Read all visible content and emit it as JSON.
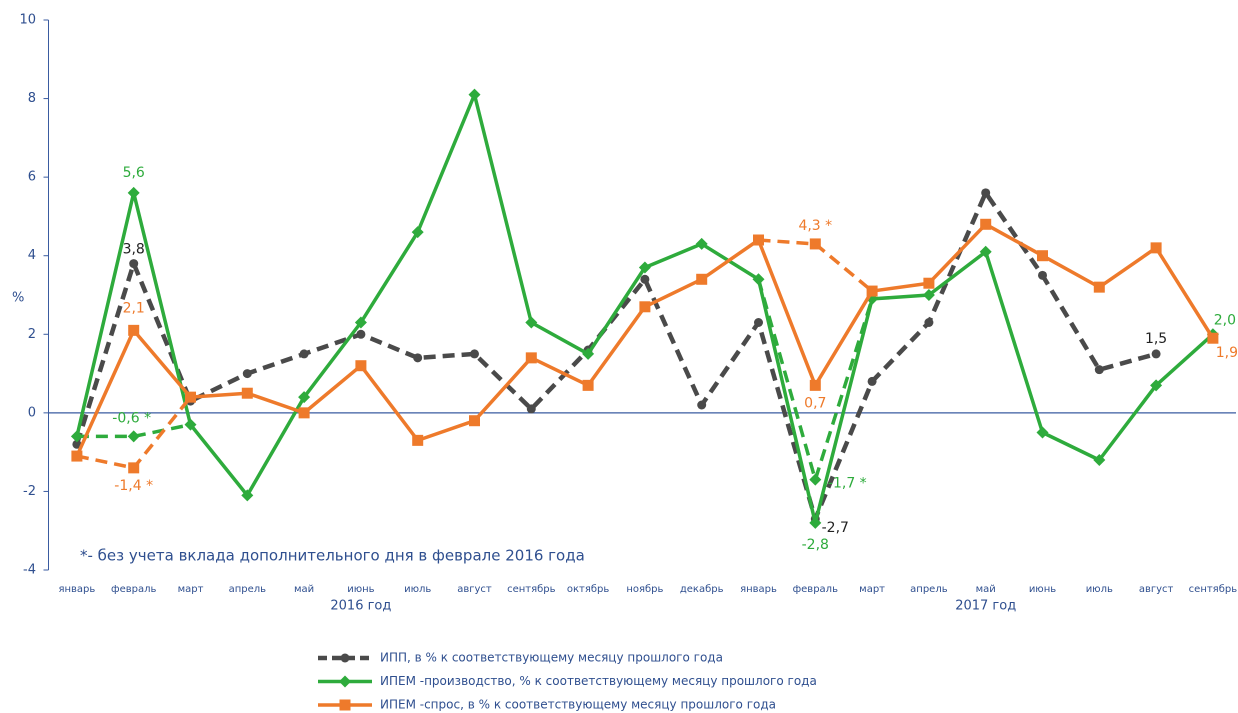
{
  "chart_data": {
    "type": "line",
    "ylabel": "%",
    "categories": [
      "январь",
      "февраль",
      "март",
      "апрель",
      "май",
      "июнь",
      "июль",
      "август",
      "сентябрь",
      "октябрь",
      "ноябрь",
      "декабрь",
      "январь",
      "февраль",
      "март",
      "апрель",
      "май",
      "июнь",
      "июль",
      "август",
      "сентябрь"
    ],
    "year_labels": [
      {
        "label": "2016 год",
        "at": 5.5
      },
      {
        "label": "2017 год",
        "at": 16.5
      }
    ],
    "footnote": "*- без учета вклада дополнительного дня в феврале 2016 года",
    "ylim": [
      -4,
      10
    ],
    "yticks": [
      -4,
      -2,
      0,
      2,
      4,
      6,
      8,
      10
    ],
    "series": [
      {
        "name": "ИПП, в % к соответствующему месяцу прошлого года",
        "color": "#4a4a4a",
        "marker": "circle",
        "dashed": true,
        "values": [
          -0.8,
          3.8,
          0.3,
          1.0,
          1.5,
          2.0,
          1.4,
          1.5,
          0.1,
          1.6,
          3.4,
          0.2,
          2.3,
          -2.7,
          0.8,
          2.3,
          5.6,
          3.5,
          1.1,
          1.5,
          null
        ],
        "value_labels": [
          null,
          "3,8",
          null,
          null,
          null,
          null,
          null,
          null,
          null,
          null,
          null,
          null,
          null,
          "-2,7",
          null,
          null,
          null,
          null,
          null,
          "1,5",
          null
        ]
      },
      {
        "name": "ИПЕМ -производство, % к соответствующему месяцу прошлого года",
        "color": "#2eab3c",
        "marker": "diamond",
        "dashed": false,
        "values": [
          -0.6,
          5.6,
          -0.3,
          -2.1,
          0.4,
          2.3,
          4.6,
          8.1,
          2.3,
          1.5,
          3.7,
          4.3,
          3.4,
          -2.8,
          2.9,
          3.0,
          4.1,
          -0.5,
          -1.2,
          0.7,
          2.0
        ],
        "value_labels": [
          null,
          "5,6",
          null,
          null,
          null,
          null,
          null,
          null,
          null,
          null,
          null,
          null,
          null,
          "-2,8",
          null,
          null,
          null,
          null,
          null,
          null,
          "2,0"
        ],
        "adjusted_values": [
          null,
          -0.6,
          null,
          null,
          null,
          null,
          null,
          null,
          null,
          null,
          null,
          null,
          null,
          -1.7,
          null,
          null,
          null,
          null,
          null,
          null,
          null
        ],
        "adjusted_value_labels": [
          null,
          "-0,6 *",
          null,
          null,
          null,
          null,
          null,
          null,
          null,
          null,
          null,
          null,
          null,
          "-1,7 *",
          null,
          null,
          null,
          null,
          null,
          null,
          null
        ]
      },
      {
        "name": "ИПЕМ -спрос, в % к соответствующему месяцу прошлого года",
        "color": "#ee7a2b",
        "marker": "square",
        "dashed": false,
        "values": [
          -1.1,
          2.1,
          0.4,
          0.5,
          0.0,
          1.2,
          -0.7,
          -0.2,
          1.4,
          0.7,
          2.7,
          3.4,
          4.4,
          0.7,
          3.1,
          3.3,
          4.8,
          4.0,
          3.2,
          4.2,
          1.9
        ],
        "value_labels": [
          null,
          "2,1",
          null,
          null,
          null,
          null,
          null,
          null,
          null,
          null,
          null,
          null,
          null,
          "0,7",
          null,
          null,
          null,
          null,
          null,
          null,
          "1,9"
        ],
        "adjusted_values": [
          null,
          -1.4,
          null,
          null,
          null,
          null,
          null,
          null,
          null,
          null,
          null,
          null,
          null,
          4.3,
          null,
          null,
          null,
          null,
          null,
          null,
          null
        ],
        "adjusted_value_labels": [
          null,
          "-1,4 *",
          null,
          null,
          null,
          null,
          null,
          null,
          null,
          null,
          null,
          null,
          null,
          "4,3 *",
          null,
          null,
          null,
          null,
          null,
          null,
          null
        ]
      }
    ]
  }
}
